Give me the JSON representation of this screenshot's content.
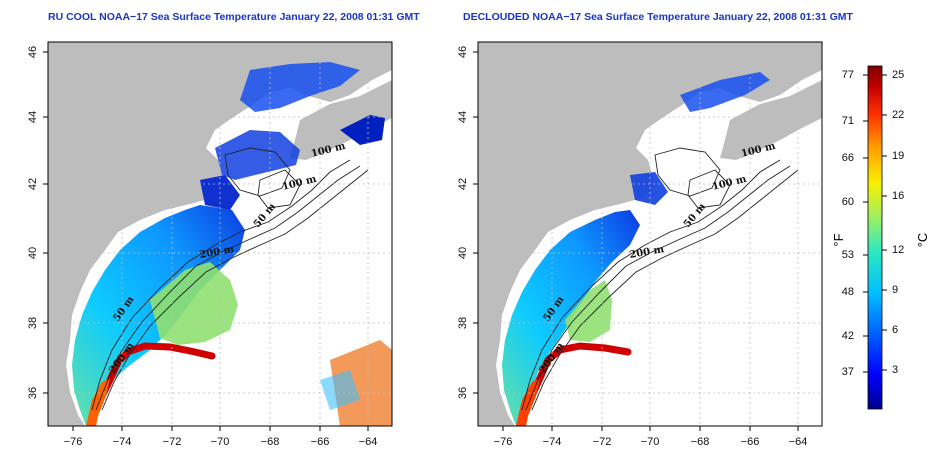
{
  "panels": [
    {
      "title": "RU COOL NOAA−17 Sea Surface Temperature January 22, 2008 01:31 GMT",
      "contour_labels": [
        "100 m",
        "100 m",
        "50 m",
        "200 m",
        "50 m",
        "200 m"
      ]
    },
    {
      "title": "DECLOUDED NOAA−17 Sea Surface Temperature January 22, 2008 01:31 GMT",
      "contour_labels": [
        "100 m",
        "100 m",
        "50 m",
        "200 m",
        "50 m",
        "200 m"
      ]
    }
  ],
  "axes": {
    "x_ticks": [
      "−76",
      "−74",
      "−72",
      "−70",
      "−68",
      "−66",
      "−64"
    ],
    "y_ticks": [
      "46",
      "44",
      "42",
      "40",
      "38",
      "36"
    ]
  },
  "colorbar": {
    "fahrenheit_label": "°F",
    "celsius_label": "°C",
    "fahrenheit_ticks": [
      "77",
      "71",
      "66",
      "60",
      "53",
      "48",
      "42",
      "37"
    ],
    "celsius_ticks": [
      "25",
      "22",
      "19",
      "16",
      "12",
      "9",
      "6",
      "3"
    ],
    "colors": [
      "#00008b",
      "#0000ff",
      "#0060ff",
      "#00c0ff",
      "#30e8c0",
      "#a0f060",
      "#f8f000",
      "#ffa000",
      "#ff3000",
      "#c00000",
      "#800000"
    ]
  },
  "colors": {
    "land": "#bdbdbd",
    "grid": "#bdbdbd",
    "title": "#1a36c8"
  }
}
